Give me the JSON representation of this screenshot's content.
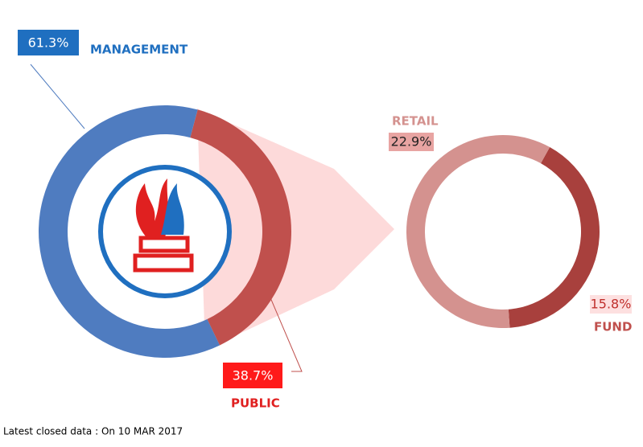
{
  "chart_data": [
    {
      "type": "donut",
      "categories": [
        "MANAGEMENT",
        "PUBLIC"
      ],
      "values": [
        61.3,
        38.7
      ],
      "value_labels": [
        "61.3%",
        "38.7%"
      ],
      "colors": [
        "#4f7cc0",
        "#c0504d"
      ]
    },
    {
      "type": "donut",
      "categories": [
        "RETAIL",
        "FUND"
      ],
      "values": [
        22.9,
        15.8
      ],
      "value_labels": [
        "22.9%",
        "15.8%"
      ],
      "colors": [
        "#d4928f",
        "#a8403d"
      ]
    }
  ],
  "footnote": "Latest closed data : On 10 MAR 2017"
}
